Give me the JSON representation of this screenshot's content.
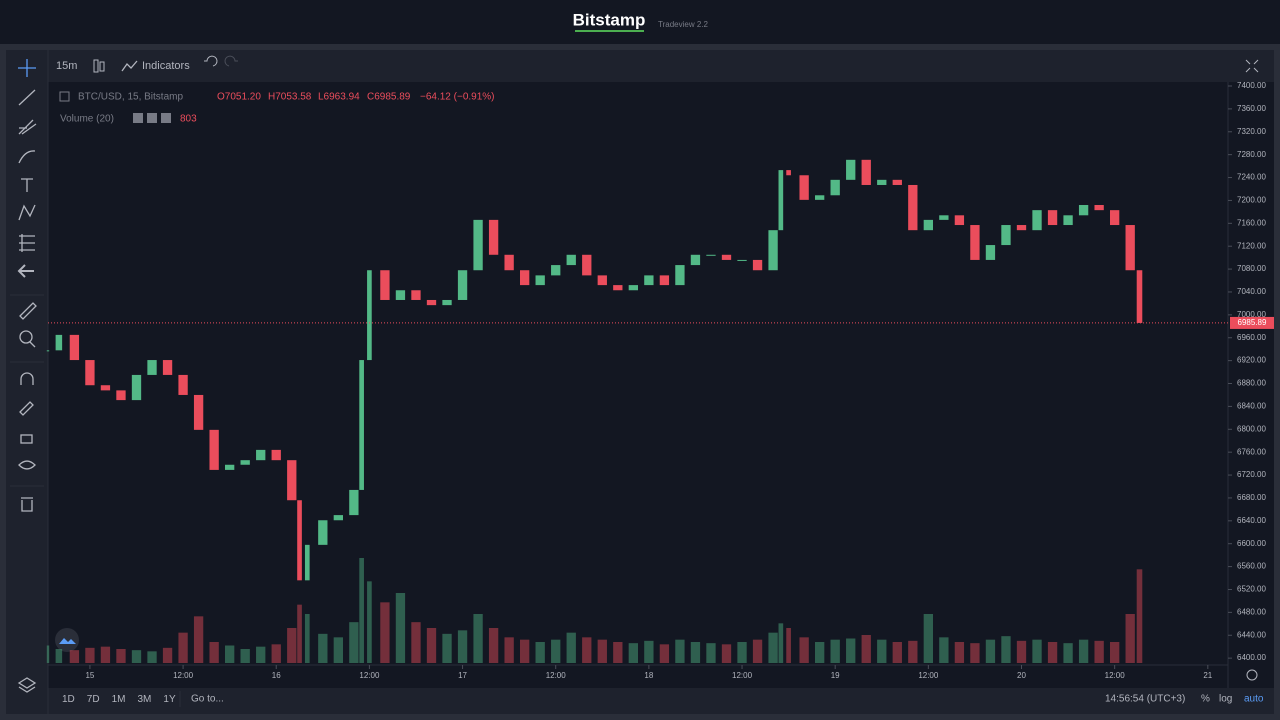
{
  "header": {
    "brand": "Bitstamp",
    "version": "Tradeview 2.2"
  },
  "toolbar": {
    "interval": "15m",
    "indicators": "Indicators"
  },
  "chart_data": {
    "type": "candlestick",
    "symbol": "BTC/USD, 15, Bitstamp",
    "open": "O7051.20",
    "high": "H7053.58",
    "low": "L6963.94",
    "close": "C6985.89",
    "change": "−64.12 (−0.91%)",
    "volume_label": "Volume (20)",
    "volume_value": "803",
    "x": [
      -5.4,
      -4,
      -2,
      0,
      2,
      4,
      6,
      8,
      10,
      12,
      14,
      16,
      18,
      20,
      22,
      24,
      26,
      27,
      28,
      30,
      32,
      34,
      35,
      36,
      38,
      40,
      42,
      44,
      46,
      48,
      50,
      52,
      54,
      56,
      58,
      60,
      62,
      64,
      66,
      68,
      70,
      72,
      74,
      76,
      78,
      80,
      82,
      84,
      86,
      88,
      89,
      90,
      92,
      94,
      96,
      98,
      100,
      102,
      104,
      106,
      108,
      110,
      112,
      114,
      116,
      118,
      120,
      122,
      124,
      126,
      128,
      130,
      132,
      134,
      135.2
    ],
    "values": [
      6938,
      6965,
      6921,
      6877,
      6868,
      6851,
      6895,
      6921,
      6895,
      6860,
      6799,
      6729,
      6738,
      6746,
      6764,
      6746,
      6676,
      6536,
      6598,
      6641,
      6650,
      6694,
      6921,
      7078,
      7026,
      7043,
      7026,
      7017,
      7026,
      7078,
      7166,
      7105,
      7078,
      7052,
      7069,
      7087,
      7105,
      7069,
      7052,
      7043,
      7052,
      7069,
      7052,
      7087,
      7105,
      7105,
      7096,
      7096,
      7078,
      7148,
      7253,
      7244,
      7201,
      7209,
      7236,
      7271,
      7227,
      7236,
      7227,
      7148,
      7166,
      7174,
      7157,
      7096,
      7122,
      7157,
      7148,
      7183,
      7157,
      7174,
      7192,
      7183,
      7157,
      7078,
      6985.89
    ],
    "volume": [
      150,
      120,
      110,
      130,
      140,
      120,
      110,
      100,
      130,
      260,
      400,
      180,
      150,
      120,
      140,
      160,
      300,
      500,
      420,
      250,
      220,
      350,
      900,
      700,
      520,
      600,
      350,
      300,
      250,
      280,
      420,
      300,
      220,
      200,
      180,
      200,
      260,
      220,
      200,
      180,
      170,
      190,
      160,
      200,
      180,
      170,
      160,
      180,
      200,
      260,
      340,
      300,
      220,
      180,
      200,
      210,
      240,
      200,
      180,
      190,
      420,
      220,
      180,
      170,
      200,
      230,
      190,
      200,
      180,
      170,
      200,
      190,
      180,
      420,
      803
    ],
    "last_price": 6985.89,
    "last_price_label": "6985.89",
    "up_color": "#53b987",
    "down_color": "#eb4d5c",
    "xlim": [
      -5.4,
      146.6
    ],
    "ylim": [
      6388,
      7407
    ],
    "xticks": [
      {
        "value": 0,
        "label": "15"
      },
      {
        "value": 12,
        "label": "12:00"
      },
      {
        "value": 24,
        "label": "16"
      },
      {
        "value": 36,
        "label": "12:00"
      },
      {
        "value": 48,
        "label": "17"
      },
      {
        "value": 60,
        "label": "12:00"
      },
      {
        "value": 72,
        "label": "18"
      },
      {
        "value": 84,
        "label": "12:00"
      },
      {
        "value": 96,
        "label": "19"
      },
      {
        "value": 108,
        "label": "12:00"
      },
      {
        "value": 120,
        "label": "20"
      },
      {
        "value": 132,
        "label": "12:00"
      },
      {
        "value": 144,
        "label": "21"
      }
    ],
    "yticks": [
      {
        "value": 6400,
        "label": "6400.00"
      },
      {
        "value": 6440,
        "label": "6440.00"
      },
      {
        "value": 6480,
        "label": "6480.00"
      },
      {
        "value": 6520,
        "label": "6520.00"
      },
      {
        "value": 6560,
        "label": "6560.00"
      },
      {
        "value": 6600,
        "label": "6600.00"
      },
      {
        "value": 6640,
        "label": "6640.00"
      },
      {
        "value": 6680,
        "label": "6680.00"
      },
      {
        "value": 6720,
        "label": "6720.00"
      },
      {
        "value": 6760,
        "label": "6760.00"
      },
      {
        "value": 6800,
        "label": "6800.00"
      },
      {
        "value": 6840,
        "label": "6840.00"
      },
      {
        "value": 6880,
        "label": "6880.00"
      },
      {
        "value": 6920,
        "label": "6920.00"
      },
      {
        "value": 6960,
        "label": "6960.00"
      },
      {
        "value": 7000,
        "label": "7000.00"
      },
      {
        "value": 7040,
        "label": "7040.00"
      },
      {
        "value": 7080,
        "label": "7080.00"
      },
      {
        "value": 7120,
        "label": "7120.00"
      },
      {
        "value": 7160,
        "label": "7160.00"
      },
      {
        "value": 7200,
        "label": "7200.00"
      },
      {
        "value": 7240,
        "label": "7240.00"
      },
      {
        "value": 7280,
        "label": "7280.00"
      },
      {
        "value": 7320,
        "label": "7320.00"
      },
      {
        "value": 7360,
        "label": "7360.00"
      },
      {
        "value": 7400,
        "label": "7400.00"
      }
    ],
    "grid": false
  },
  "footer": {
    "ranges": [
      "1D",
      "7D",
      "1M",
      "3M",
      "1Y"
    ],
    "goto": "Go to...",
    "time": "14:56:54 (UTC+3)",
    "percent": "%",
    "log": "log",
    "auto": "auto"
  }
}
